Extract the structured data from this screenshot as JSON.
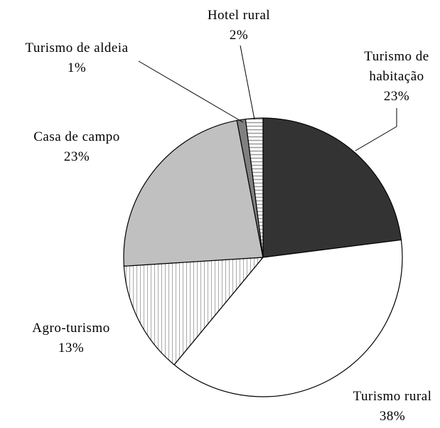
{
  "chart_data": {
    "type": "pie",
    "categories": [
      "Turismo de habitação",
      "Turismo rural",
      "Agro-turismo",
      "Casa de campo",
      "Turismo de aldeia",
      "Hotel rural"
    ],
    "values": [
      23,
      38,
      13,
      23,
      1,
      2
    ],
    "value_labels": [
      "23%",
      "38%",
      "13%",
      "23%",
      "1%",
      "2%"
    ],
    "colors": [
      "#333333",
      "#ffffff",
      "#ffffff",
      "#c0c0c0",
      "#808080",
      "#ffffff"
    ],
    "patterns": [
      null,
      null,
      "vertical",
      null,
      null,
      "horizontal"
    ]
  }
}
